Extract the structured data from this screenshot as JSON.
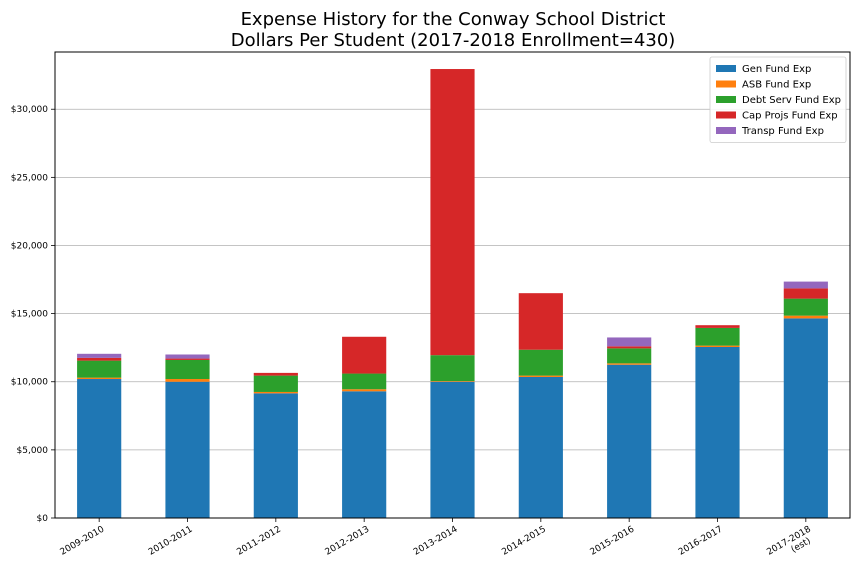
{
  "chart_data": {
    "type": "bar",
    "stacked": true,
    "title": [
      "Expense History for the Conway School District",
      "Dollars Per Student (2017-2018 Enrollment=430)"
    ],
    "xlabel": "",
    "ylabel": "",
    "categories": [
      "2009-2010",
      "2010-2011",
      "2011-2012",
      "2012-2013",
      "2013-2014",
      "2014-2015",
      "2015-2016",
      "2016-2017",
      "2017-2018\n(est)"
    ],
    "ylim": [
      0,
      34200
    ],
    "yticks": [
      0,
      5000,
      10000,
      15000,
      20000,
      25000,
      30000
    ],
    "ytick_labels": [
      "$0",
      "$5,000",
      "$10,000",
      "$15,000",
      "$20,000",
      "$25,000",
      "$30,000"
    ],
    "grid": "y",
    "legend_position": "top-right",
    "series": [
      {
        "name": "Gen Fund Exp",
        "color": "#1f77b4",
        "values": [
          10200,
          10000,
          9150,
          9300,
          10000,
          10350,
          11250,
          12550,
          14650
        ]
      },
      {
        "name": "ASB Fund Exp",
        "color": "#ff7f0e",
        "values": [
          100,
          200,
          100,
          150,
          50,
          100,
          100,
          100,
          200
        ]
      },
      {
        "name": "Debt Serv Fund Exp",
        "color": "#2ca02c",
        "values": [
          1250,
          1400,
          1200,
          1150,
          1900,
          1900,
          1100,
          1300,
          1250
        ]
      },
      {
        "name": "Cap Projs Fund Exp",
        "color": "#d62728",
        "values": [
          200,
          100,
          200,
          2700,
          21000,
          4150,
          150,
          200,
          750
        ]
      },
      {
        "name": "Transp Fund Exp",
        "color": "#9467bd",
        "values": [
          300,
          300,
          0,
          0,
          0,
          0,
          650,
          0,
          500
        ]
      }
    ]
  }
}
